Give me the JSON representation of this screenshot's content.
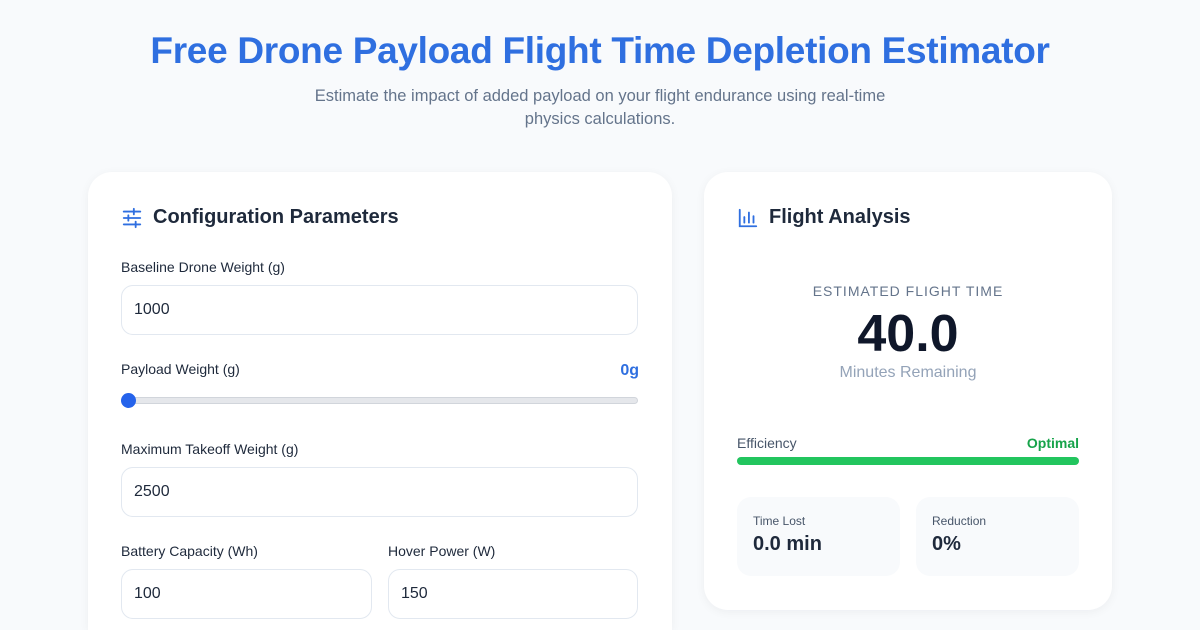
{
  "header": {
    "title": "Free Drone Payload Flight Time Depletion Estimator",
    "subtitle": "Estimate the impact of added payload on your flight endurance using real-time physics calculations."
  },
  "config": {
    "heading": "Configuration Parameters",
    "icon": "sliders-icon",
    "baseline_label": "Baseline Drone Weight (g)",
    "baseline_value": "1000",
    "payload_label": "Payload Weight (g)",
    "payload_display": "0g",
    "payload_value": 0,
    "mtow_label": "Maximum Takeoff Weight (g)",
    "mtow_value": "2500",
    "battery_label": "Battery Capacity (Wh)",
    "battery_value": "100",
    "hover_label": "Hover Power (W)",
    "hover_value": "150"
  },
  "analysis": {
    "heading": "Flight Analysis",
    "icon": "bar-chart-icon",
    "estimate_label": "ESTIMATED FLIGHT TIME",
    "estimate_value": "40.0",
    "estimate_unit": "Minutes Remaining",
    "efficiency_label": "Efficiency",
    "efficiency_status": "Optimal",
    "efficiency_percent": 100,
    "time_lost_label": "Time Lost",
    "time_lost_value": "0.0 min",
    "reduction_label": "Reduction",
    "reduction_value": "0%"
  },
  "colors": {
    "accent": "#2f6fe0",
    "success": "#22c55e",
    "success_text": "#16a34a"
  }
}
